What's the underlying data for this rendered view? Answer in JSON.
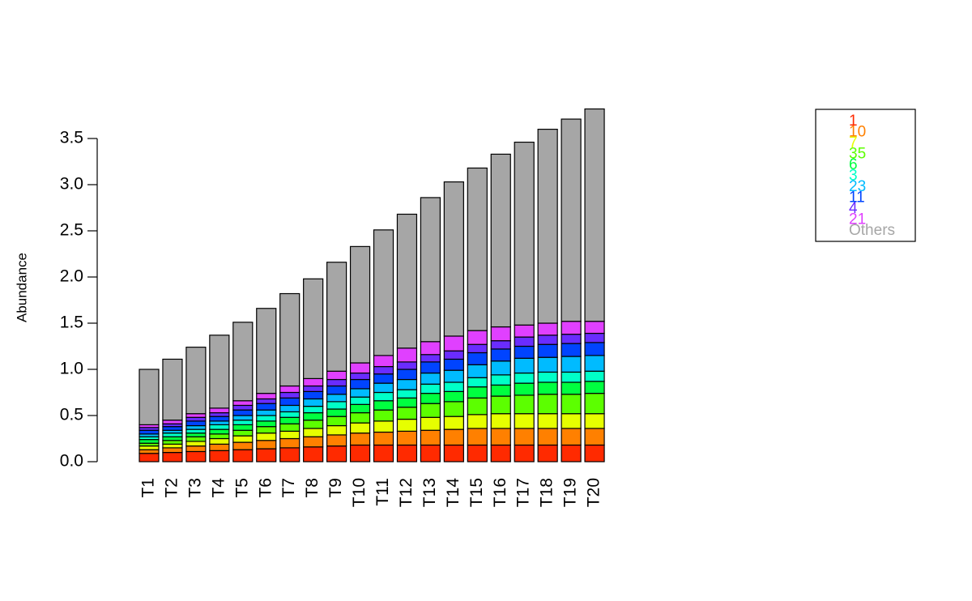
{
  "chart_data": {
    "type": "stacked_bar",
    "y_label": "Abundance",
    "categories": [
      "T1",
      "T2",
      "T3",
      "T4",
      "T5",
      "T6",
      "T7",
      "T8",
      "T9",
      "T10",
      "T11",
      "T12",
      "T13",
      "T14",
      "T15",
      "T16",
      "T17",
      "T18",
      "T19",
      "T20"
    ],
    "series": [
      {
        "name": "1",
        "color": "#ff2a00",
        "values": [
          0.09,
          0.1,
          0.11,
          0.12,
          0.13,
          0.14,
          0.15,
          0.16,
          0.17,
          0.18,
          0.18,
          0.18,
          0.18,
          0.18,
          0.18,
          0.18,
          0.18,
          0.18,
          0.18,
          0.18
        ]
      },
      {
        "name": "10",
        "color": "#ff8000",
        "values": [
          0.04,
          0.05,
          0.06,
          0.07,
          0.08,
          0.09,
          0.1,
          0.11,
          0.12,
          0.13,
          0.14,
          0.15,
          0.16,
          0.17,
          0.18,
          0.18,
          0.18,
          0.18,
          0.18,
          0.18
        ]
      },
      {
        "name": "7",
        "color": "#e6ff00",
        "values": [
          0.04,
          0.04,
          0.05,
          0.06,
          0.07,
          0.08,
          0.08,
          0.09,
          0.1,
          0.11,
          0.12,
          0.13,
          0.14,
          0.14,
          0.15,
          0.16,
          0.16,
          0.16,
          0.16,
          0.16
        ]
      },
      {
        "name": "35",
        "color": "#5cff00",
        "values": [
          0.03,
          0.04,
          0.05,
          0.05,
          0.06,
          0.07,
          0.08,
          0.09,
          0.1,
          0.11,
          0.12,
          0.13,
          0.15,
          0.16,
          0.18,
          0.19,
          0.2,
          0.21,
          0.21,
          0.22
        ]
      },
      {
        "name": "6",
        "color": "#00ff40",
        "values": [
          0.04,
          0.04,
          0.04,
          0.05,
          0.06,
          0.06,
          0.07,
          0.08,
          0.08,
          0.09,
          0.1,
          0.1,
          0.11,
          0.11,
          0.12,
          0.12,
          0.13,
          0.13,
          0.13,
          0.13
        ]
      },
      {
        "name": "3",
        "color": "#00ffc8",
        "values": [
          0.03,
          0.04,
          0.04,
          0.05,
          0.05,
          0.06,
          0.06,
          0.07,
          0.08,
          0.08,
          0.09,
          0.09,
          0.1,
          0.1,
          0.1,
          0.11,
          0.11,
          0.11,
          0.11,
          0.11
        ]
      },
      {
        "name": "23",
        "color": "#00bbff",
        "values": [
          0.03,
          0.03,
          0.04,
          0.04,
          0.05,
          0.06,
          0.07,
          0.08,
          0.08,
          0.09,
          0.1,
          0.11,
          0.12,
          0.13,
          0.14,
          0.15,
          0.16,
          0.16,
          0.17,
          0.17
        ]
      },
      {
        "name": "11",
        "color": "#0044ff",
        "values": [
          0.04,
          0.04,
          0.05,
          0.05,
          0.06,
          0.07,
          0.08,
          0.08,
          0.09,
          0.1,
          0.1,
          0.11,
          0.12,
          0.12,
          0.13,
          0.13,
          0.13,
          0.14,
          0.14,
          0.14
        ]
      },
      {
        "name": "4",
        "color": "#6a2cff",
        "values": [
          0.03,
          0.03,
          0.04,
          0.04,
          0.05,
          0.05,
          0.06,
          0.06,
          0.07,
          0.07,
          0.08,
          0.08,
          0.08,
          0.09,
          0.09,
          0.09,
          0.1,
          0.1,
          0.1,
          0.1
        ]
      },
      {
        "name": "21",
        "color": "#e040ff",
        "values": [
          0.03,
          0.04,
          0.04,
          0.05,
          0.05,
          0.06,
          0.07,
          0.08,
          0.09,
          0.11,
          0.12,
          0.15,
          0.14,
          0.16,
          0.15,
          0.15,
          0.13,
          0.13,
          0.14,
          0.13
        ]
      },
      {
        "name": "Others",
        "color": "#a6a6a6",
        "values": [
          0.6,
          0.66,
          0.72,
          0.79,
          0.85,
          0.92,
          1.0,
          1.08,
          1.18,
          1.26,
          1.36,
          1.45,
          1.56,
          1.67,
          1.76,
          1.87,
          1.98,
          2.1,
          2.19,
          2.3
        ]
      }
    ],
    "ylim": [
      0,
      3.97
    ],
    "yticks": [
      {
        "value": 0,
        "label": "0.0"
      },
      {
        "value": 0.5,
        "label": "0.5"
      },
      {
        "value": 1,
        "label": "1.0"
      },
      {
        "value": 1.5,
        "label": "1.5"
      },
      {
        "value": 2,
        "label": "2.0"
      },
      {
        "value": 2.5,
        "label": "2.5"
      },
      {
        "value": 3,
        "label": "3.0"
      },
      {
        "value": 3.5,
        "label": "3.5"
      }
    ],
    "legend": "right"
  }
}
